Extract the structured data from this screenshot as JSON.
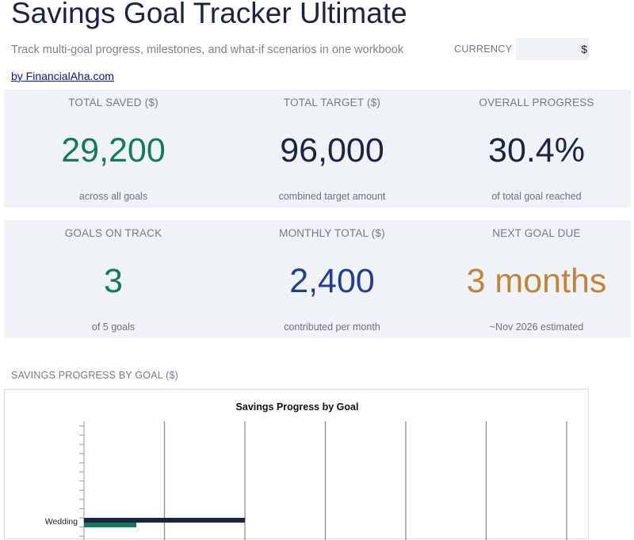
{
  "header": {
    "title": "Savings Goal Tracker Ultimate",
    "subtitle": "Track multi-goal progress, milestones, and what-if scenarios in one workbook",
    "currency_label": "CURRENCY",
    "currency_value": "$",
    "author_link": "by FinancialAha.com"
  },
  "kpis_row1": [
    {
      "label": "TOTAL SAVED ($)",
      "value": "29,200",
      "sub": "across all goals",
      "color": "#157a5a"
    },
    {
      "label": "TOTAL TARGET ($)",
      "value": "96,000",
      "sub": "combined target amount",
      "color": "#1b2440"
    },
    {
      "label": "OVERALL PROGRESS",
      "value": "30.4%",
      "sub": "of total goal reached",
      "color": "#1b2440"
    }
  ],
  "kpis_row2": [
    {
      "label": "GOALS ON TRACK",
      "value": "3",
      "sub": "of 5 goals",
      "color": "#157a5a"
    },
    {
      "label": "MONTHLY TOTAL ($)",
      "value": "2,400",
      "sub": "contributed per month",
      "color": "#233d91"
    },
    {
      "label": "NEXT GOAL DUE",
      "value": "3 months",
      "sub": "~Nov 2026 estimated",
      "color": "#c0843c"
    }
  ],
  "section": {
    "chart_heading": "SAVINGS PROGRESS BY GOAL ($)"
  },
  "chart_data": {
    "type": "bar",
    "title": "Savings Progress by Goal",
    "orientation": "horizontal",
    "categories": [
      "Wedding"
    ],
    "series": [
      {
        "values": [
          20000
        ],
        "color": "#1b2440"
      },
      {
        "values": [
          6500
        ],
        "color": "#157a5a"
      }
    ],
    "xlim": [
      0,
      60000
    ],
    "x_gridline_step": 10000,
    "grid": true
  }
}
